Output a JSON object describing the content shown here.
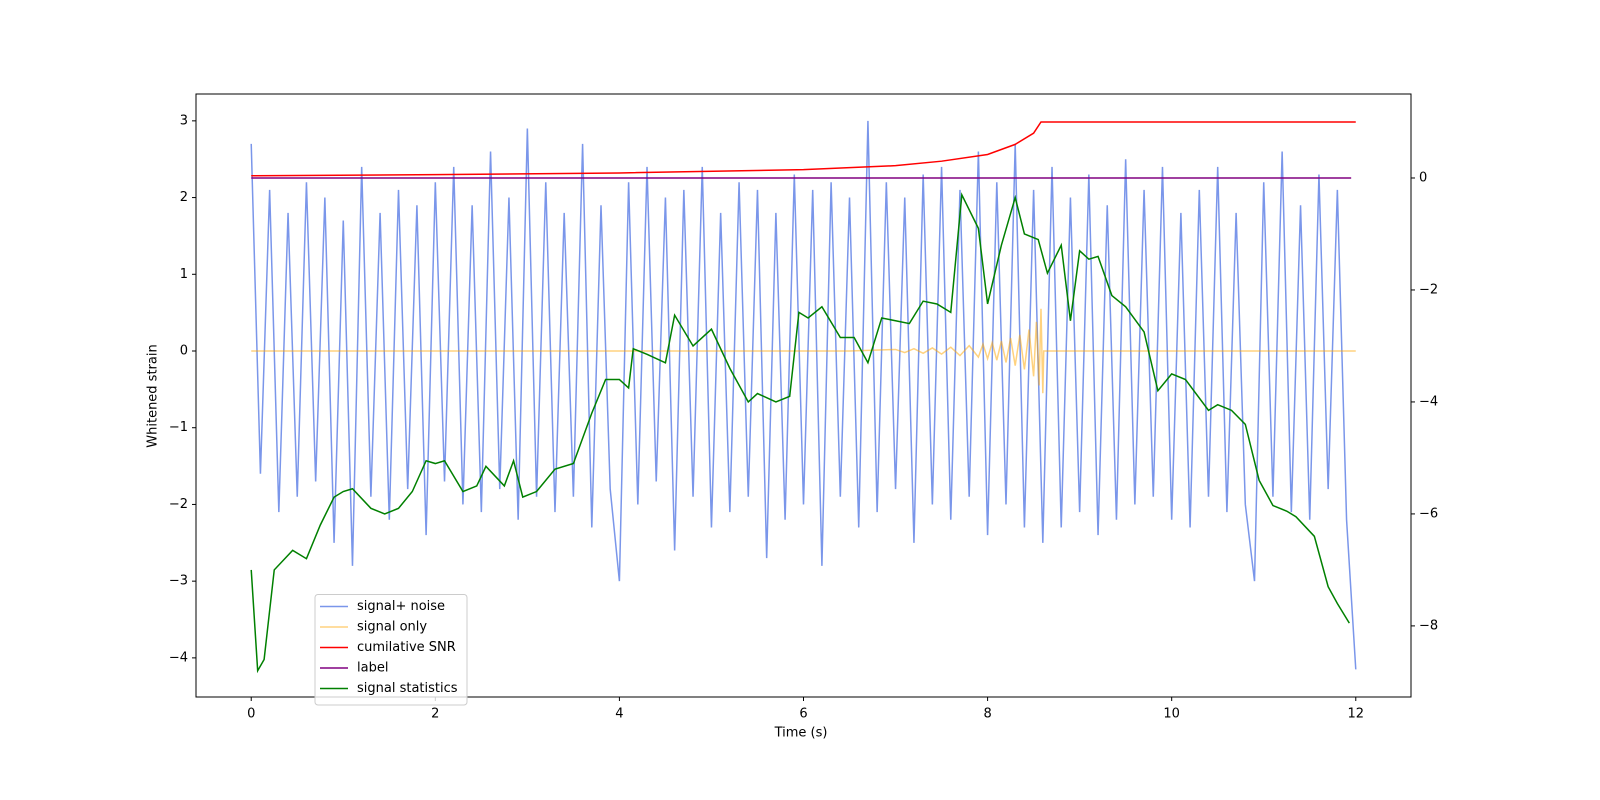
{
  "chart_data": {
    "type": "line",
    "xlabel": "Time (s)",
    "ylabel": "Whitened strain",
    "xlim": [
      -0.6,
      12.6
    ],
    "xticks": [
      0,
      2,
      4,
      6,
      8,
      10,
      12
    ],
    "ylim": [
      -4.51,
      3.35
    ],
    "yticks": [
      {
        "value": -4,
        "label": "−4"
      },
      {
        "value": -3,
        "label": "−3"
      },
      {
        "value": -2,
        "label": "−2"
      },
      {
        "value": -1,
        "label": "−1"
      },
      0,
      1,
      2,
      3
    ],
    "y2lim": [
      -9.27,
      1.5
    ],
    "y2ticks": [
      {
        "value": -8,
        "label": "−8"
      },
      {
        "value": -6,
        "label": "−6"
      },
      {
        "value": -4,
        "label": "−4"
      },
      {
        "value": -2,
        "label": "−2"
      },
      0
    ],
    "legend": "lower left",
    "series": [
      {
        "name": "signal+ noise",
        "color": "#4169e1",
        "alpha": 0.7,
        "x": [
          0,
          0.1,
          0.2,
          0.3,
          0.4,
          0.5,
          0.6,
          0.7,
          0.8,
          0.9,
          1,
          1.1,
          1.2,
          1.3,
          1.4,
          1.5,
          1.6,
          1.7,
          1.8,
          1.9,
          2,
          2.1,
          2.2,
          2.3,
          2.4,
          2.5,
          2.6,
          2.7,
          2.8,
          2.9,
          3,
          3.1,
          3.2,
          3.3,
          3.4,
          3.5,
          3.6,
          3.7,
          3.8,
          3.9,
          4,
          4.1,
          4.2,
          4.3,
          4.4,
          4.5,
          4.6,
          4.7,
          4.8,
          4.9,
          5,
          5.1,
          5.2,
          5.3,
          5.4,
          5.5,
          5.6,
          5.7,
          5.8,
          5.9,
          6,
          6.1,
          6.2,
          6.3,
          6.4,
          6.5,
          6.6,
          6.7,
          6.8,
          6.9,
          7,
          7.1,
          7.2,
          7.3,
          7.4,
          7.5,
          7.6,
          7.7,
          7.8,
          7.9,
          8,
          8.1,
          8.2,
          8.3,
          8.4,
          8.5,
          8.6,
          8.7,
          8.8,
          8.9,
          9,
          9.1,
          9.2,
          9.3,
          9.4,
          9.5,
          9.6,
          9.7,
          9.8,
          9.9,
          10,
          10.1,
          10.2,
          10.3,
          10.4,
          10.5,
          10.6,
          10.7,
          10.8,
          10.9,
          11,
          11.1,
          11.2,
          11.3,
          11.4,
          11.5,
          11.6,
          11.7,
          11.8,
          11.9,
          12
        ],
        "values": [
          2.7,
          -1.6,
          2.1,
          -2.1,
          1.8,
          -1.9,
          2.2,
          -1.7,
          2.0,
          -2.5,
          1.7,
          -2.8,
          2.4,
          -1.9,
          1.8,
          -2.2,
          2.1,
          -1.8,
          1.9,
          -2.4,
          2.2,
          -1.7,
          2.4,
          -2.0,
          1.9,
          -2.1,
          2.6,
          -1.8,
          2.0,
          -2.2,
          2.9,
          -1.9,
          2.2,
          -2.1,
          1.8,
          -1.9,
          2.7,
          -2.3,
          1.9,
          -1.8,
          -3.0,
          2.2,
          -2.0,
          2.4,
          -1.7,
          2.0,
          -2.6,
          2.1,
          -1.9,
          2.4,
          -2.3,
          1.8,
          -2.1,
          2.2,
          -1.9,
          2.1,
          -2.7,
          1.8,
          -2.2,
          2.3,
          -2.0,
          2.1,
          -2.8,
          2.2,
          -1.9,
          2.0,
          -2.3,
          3.0,
          -2.1,
          2.2,
          -1.8,
          2.0,
          -2.5,
          2.3,
          -2.0,
          2.4,
          -2.2,
          2.1,
          -1.9,
          2.6,
          -2.4,
          2.2,
          -2.0,
          2.7,
          -2.3,
          2.1,
          -2.5,
          2.4,
          -2.3,
          2.0,
          -2.1,
          2.3,
          -2.4,
          1.9,
          -2.2,
          2.5,
          -2.0,
          2.1,
          -1.9,
          2.4,
          -2.2,
          1.8,
          -2.3,
          2.1,
          -1.9,
          2.4,
          -2.1,
          1.8,
          -2.0,
          -3.0,
          2.2,
          -1.9,
          2.6,
          -2.1,
          1.9,
          -2.2,
          2.3,
          -1.8,
          2.1,
          -2.2,
          -4.15
        ]
      },
      {
        "name": "signal only",
        "color": "#ffa500",
        "alpha": 0.5,
        "x": [
          0,
          6.5,
          7.0,
          7.1,
          7.2,
          7.3,
          7.4,
          7.5,
          7.6,
          7.7,
          7.8,
          7.9,
          7.95,
          8.0,
          8.05,
          8.1,
          8.15,
          8.2,
          8.25,
          8.3,
          8.35,
          8.4,
          8.45,
          8.5,
          8.53,
          8.56,
          8.58,
          8.6,
          8.61,
          12
        ],
        "values": [
          0,
          0,
          0.02,
          -0.02,
          0.03,
          -0.03,
          0.04,
          -0.04,
          0.05,
          -0.06,
          0.07,
          -0.08,
          0.09,
          -0.1,
          0.11,
          -0.12,
          0.13,
          -0.15,
          0.17,
          -0.19,
          0.21,
          -0.24,
          0.28,
          -0.33,
          0.38,
          -0.45,
          0.55,
          -0.55,
          0,
          0
        ]
      },
      {
        "name": "cumilative SNR",
        "color": "#ff0000",
        "alpha": 1,
        "axis": "y2",
        "x": [
          0,
          2,
          4,
          6,
          7,
          7.5,
          8,
          8.3,
          8.5,
          8.58,
          8.6,
          12
        ],
        "values": [
          0.04,
          0.06,
          0.09,
          0.15,
          0.22,
          0.3,
          0.42,
          0.6,
          0.8,
          1.0,
          1.0,
          1.0
        ]
      },
      {
        "name": "label",
        "color": "#800080",
        "alpha": 1,
        "axis": "y2",
        "x": [
          0,
          11.95
        ],
        "values": [
          0,
          0
        ]
      },
      {
        "name": "signal statistics",
        "color": "#008000",
        "alpha": 1,
        "axis": "y2",
        "x": [
          0,
          0.07,
          0.14,
          0.25,
          0.45,
          0.6,
          0.75,
          0.9,
          1.0,
          1.1,
          1.3,
          1.45,
          1.6,
          1.75,
          1.9,
          2.0,
          2.1,
          2.3,
          2.45,
          2.55,
          2.75,
          2.85,
          2.95,
          3.1,
          3.3,
          3.5,
          3.7,
          3.85,
          4.0,
          4.1,
          4.15,
          4.3,
          4.5,
          4.6,
          4.8,
          5.0,
          5.2,
          5.4,
          5.5,
          5.7,
          5.85,
          5.95,
          6.05,
          6.2,
          6.4,
          6.55,
          6.7,
          6.85,
          7.0,
          7.15,
          7.3,
          7.45,
          7.6,
          7.72,
          7.9,
          8.0,
          8.15,
          8.3,
          8.4,
          8.55,
          8.65,
          8.8,
          8.9,
          9.0,
          9.1,
          9.2,
          9.35,
          9.5,
          9.7,
          9.85,
          10.0,
          10.15,
          10.4,
          10.5,
          10.65,
          10.8,
          10.95,
          11.1,
          11.25,
          11.35,
          11.55,
          11.7,
          11.8,
          11.93
        ],
        "values": [
          -7.0,
          -8.8,
          -8.6,
          -7.0,
          -6.65,
          -6.8,
          -6.2,
          -5.7,
          -5.6,
          -5.55,
          -5.9,
          -6.0,
          -5.9,
          -5.6,
          -5.05,
          -5.1,
          -5.05,
          -5.6,
          -5.5,
          -5.15,
          -5.5,
          -5.05,
          -5.7,
          -5.6,
          -5.2,
          -5.1,
          -4.2,
          -3.6,
          -3.6,
          -3.75,
          -3.05,
          -3.15,
          -3.3,
          -2.45,
          -3.0,
          -2.7,
          -3.4,
          -4.0,
          -3.85,
          -4.0,
          -3.9,
          -2.4,
          -2.5,
          -2.3,
          -2.85,
          -2.85,
          -3.3,
          -2.5,
          -2.55,
          -2.6,
          -2.2,
          -2.25,
          -2.4,
          -0.3,
          -0.9,
          -2.25,
          -1.2,
          -0.35,
          -1.0,
          -1.1,
          -1.7,
          -1.2,
          -2.55,
          -1.3,
          -1.45,
          -1.4,
          -2.1,
          -2.3,
          -2.75,
          -3.8,
          -3.5,
          -3.6,
          -4.15,
          -4.05,
          -4.15,
          -4.4,
          -5.4,
          -5.85,
          -5.95,
          -6.05,
          -6.4,
          -7.3,
          -7.6,
          -7.95
        ]
      }
    ]
  }
}
